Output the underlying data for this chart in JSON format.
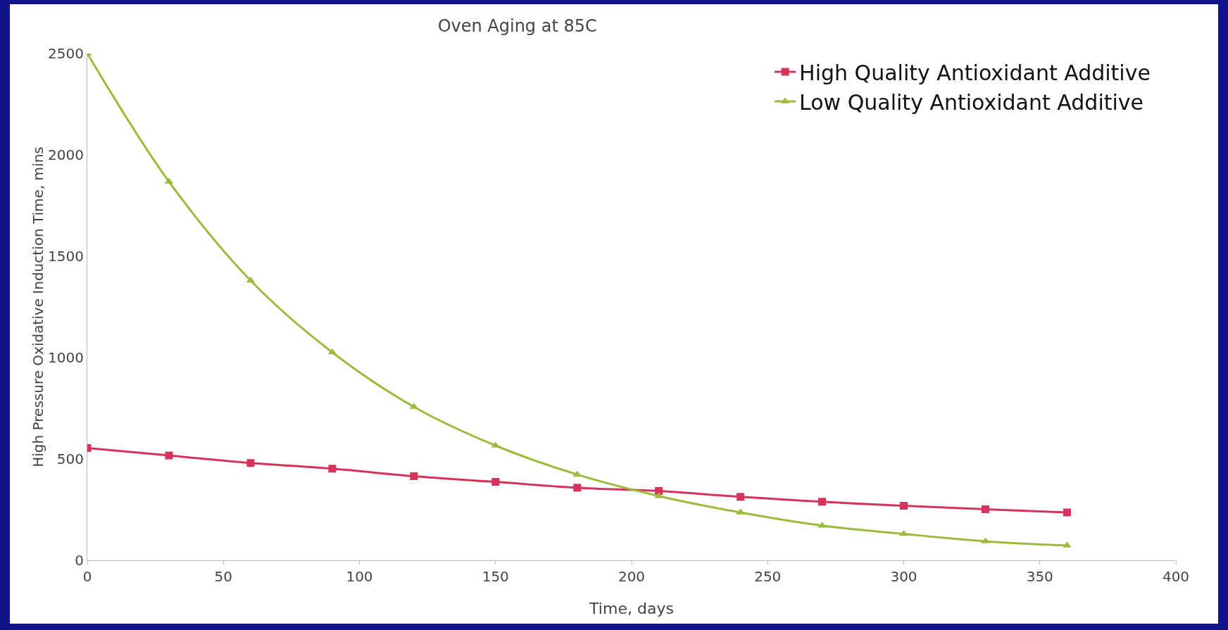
{
  "chart_data": {
    "type": "line",
    "title": "Oven Aging at 85C",
    "xlabel": "Time, days",
    "ylabel": "High Pressure Oxidative Induction Time, mins",
    "x": [
      0,
      30,
      60,
      90,
      120,
      150,
      180,
      210,
      240,
      270,
      300,
      330,
      360
    ],
    "series": [
      {
        "name": "High Quality Antioxidant Additive",
        "color": "#d6325a",
        "marker": "square",
        "values": [
          554,
          517,
          480,
          452,
          415,
          387,
          358,
          342,
          313,
          289,
          269,
          252,
          236
        ]
      },
      {
        "name": "Low Quality Antioxidant Additive",
        "color": "#9bbb3c",
        "marker": "triangle",
        "values": [
          2500,
          1868,
          1380,
          1026,
          757,
          566,
          423,
          317,
          236,
          171,
          130,
          94,
          73
        ]
      }
    ],
    "xlim": [
      0,
      400
    ],
    "xticks": [
      0,
      50,
      100,
      150,
      200,
      250,
      300,
      350,
      400
    ],
    "ylim": [
      0,
      2500
    ],
    "yticks": [
      0,
      500,
      1000,
      1500,
      2000,
      2500
    ],
    "grid": false,
    "legend": "top right",
    "line_style": "solid"
  }
}
